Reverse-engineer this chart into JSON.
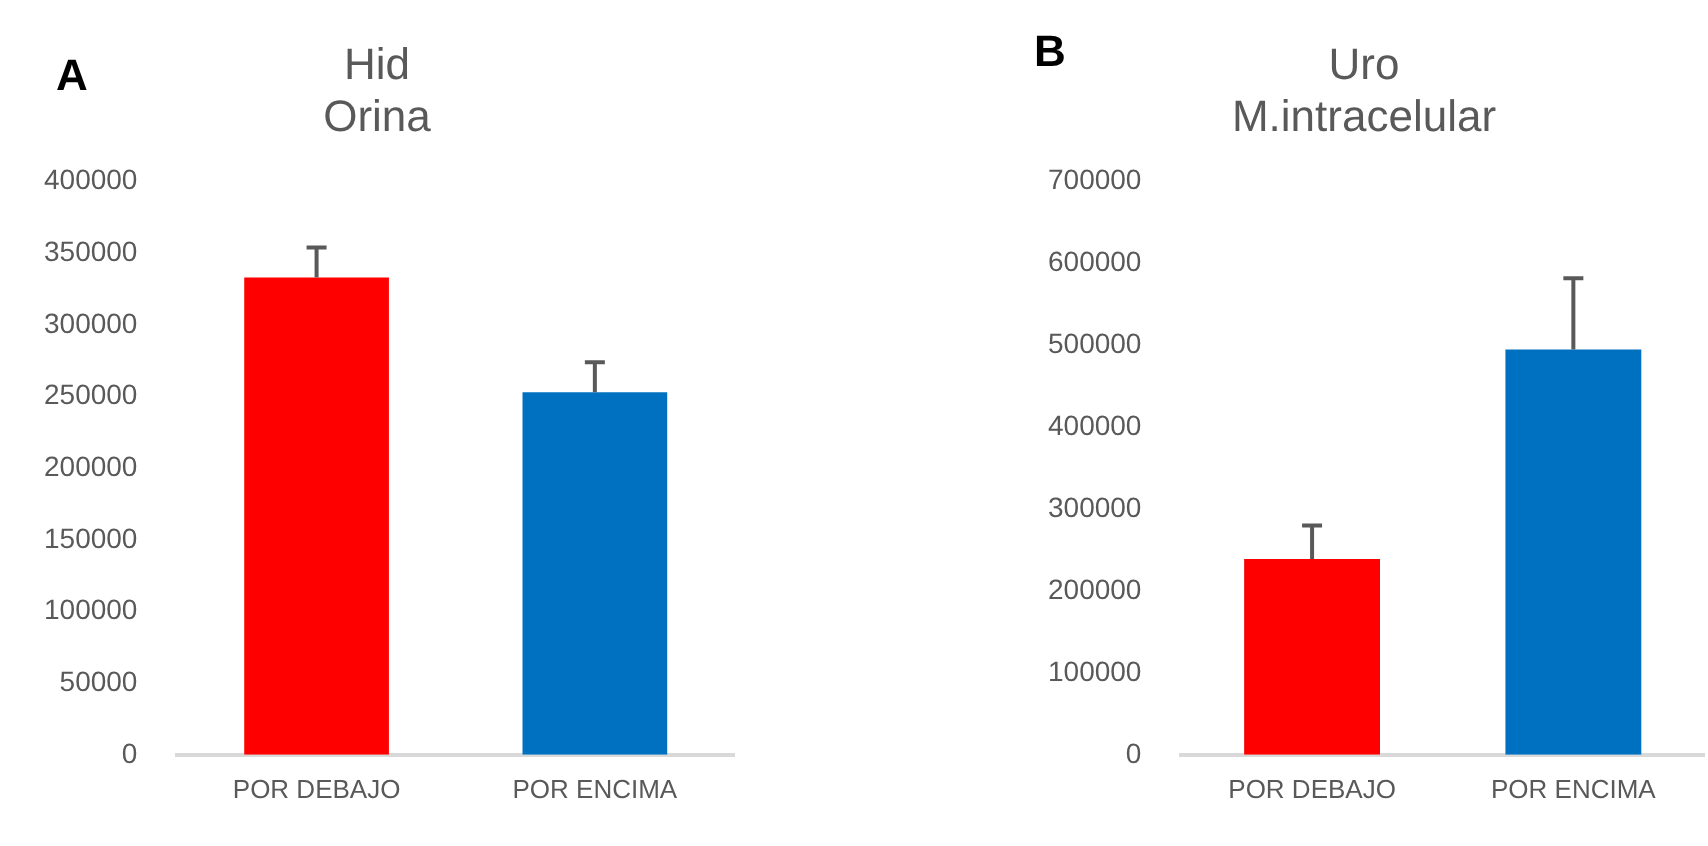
{
  "chart_data": [
    {
      "type": "bar",
      "title": "Hid\nOrina",
      "annotations": [
        "A"
      ],
      "categories": [
        "POR DEBAJO",
        "POR ENCIMA"
      ],
      "values": [
        333000,
        253000
      ],
      "colors": [
        "#ff0000",
        "#0070c0"
      ],
      "errors": [
        [
          333000,
          354000
        ],
        [
          253000,
          274000
        ]
      ],
      "ylim": [
        0,
        400000
      ],
      "yticks": [
        0,
        50000,
        100000,
        150000,
        200000,
        250000,
        300000,
        350000,
        400000
      ],
      "grid": false,
      "legend": false
    },
    {
      "type": "bar",
      "title": "Uro\nM.intracelular",
      "annotations": [
        "B"
      ],
      "categories": [
        "POR DEBAJO",
        "POR ENCIMA"
      ],
      "values": [
        239000,
        495000
      ],
      "colors": [
        "#ff0000",
        "#0070c0"
      ],
      "errors": [
        [
          239000,
          280000
        ],
        [
          495000,
          582000
        ]
      ],
      "ylim": [
        0,
        700000
      ],
      "yticks": [
        0,
        100000,
        200000,
        300000,
        400000,
        500000,
        600000,
        700000
      ],
      "grid": false,
      "legend": false
    }
  ]
}
